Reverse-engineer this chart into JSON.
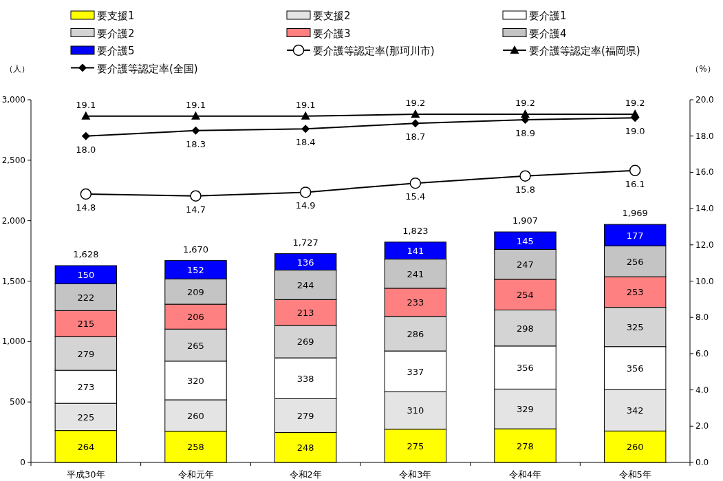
{
  "chart_data": {
    "type": "bar",
    "stacked": true,
    "ylabel": "（人）",
    "y2label": "（%）",
    "categories": [
      "平成30年",
      "令和元年",
      "令和2年",
      "令和3年",
      "令和4年",
      "令和5年"
    ],
    "ylim": [
      0,
      3000
    ],
    "yticks": [
      {
        "value": 0,
        "label": "0"
      },
      {
        "value": 500,
        "label": "500"
      },
      {
        "value": 1000,
        "label": "1,000"
      },
      {
        "value": 1500,
        "label": "1,500"
      },
      {
        "value": 2000,
        "label": "2,000"
      },
      {
        "value": 2500,
        "label": "2,500"
      },
      {
        "value": 3000,
        "label": "3,000"
      }
    ],
    "y2lim": [
      0,
      20
    ],
    "y2ticks": [
      {
        "value": 0,
        "label": "0.0"
      },
      {
        "value": 2,
        "label": "2.0"
      },
      {
        "value": 4,
        "label": "4.0"
      },
      {
        "value": 6,
        "label": "6.0"
      },
      {
        "value": 8,
        "label": "8.0"
      },
      {
        "value": 10,
        "label": "10.0"
      },
      {
        "value": 12,
        "label": "12.0"
      },
      {
        "value": 14,
        "label": "14.0"
      },
      {
        "value": 16,
        "label": "16.0"
      },
      {
        "value": 18,
        "label": "18.0"
      },
      {
        "value": 20,
        "label": "20.0"
      }
    ],
    "legend": "top",
    "data_labels": true,
    "totals": [
      "1,628",
      "1,670",
      "1,727",
      "1,823",
      "1,907",
      "1,969"
    ],
    "series": [
      {
        "name": "要支援1",
        "color": "#ffff00",
        "values": [
          264,
          258,
          248,
          275,
          278,
          260
        ]
      },
      {
        "name": "要支援2",
        "color": "#e4e4e4",
        "values": [
          225,
          260,
          279,
          310,
          329,
          342
        ]
      },
      {
        "name": "要介護1",
        "color": "#ffffff",
        "values": [
          273,
          320,
          338,
          337,
          356,
          356
        ]
      },
      {
        "name": "要介護2",
        "color": "#d4d4d4",
        "values": [
          279,
          265,
          269,
          286,
          298,
          325
        ]
      },
      {
        "name": "要介護3",
        "color": "#ff8080",
        "values": [
          215,
          206,
          213,
          233,
          254,
          253
        ]
      },
      {
        "name": "要介護4",
        "color": "#c4c4c4",
        "values": [
          222,
          209,
          244,
          241,
          247,
          256
        ]
      },
      {
        "name": "要介護5",
        "color": "#0000ff",
        "values": [
          150,
          152,
          136,
          141,
          145,
          177
        ]
      },
      {
        "name": "要介護等認定率(那珂川市)",
        "type": "line",
        "axis": "y2",
        "marker": "circle",
        "color": "#000000",
        "values": [
          14.8,
          14.7,
          14.9,
          15.4,
          15.8,
          16.1
        ],
        "value_labels": [
          "14.8",
          "14.7",
          "14.9",
          "15.4",
          "15.8",
          "16.1"
        ]
      },
      {
        "name": "要介護等認定率(福岡県)",
        "type": "line",
        "axis": "y2",
        "marker": "triangle",
        "color": "#000000",
        "values": [
          19.1,
          19.1,
          19.1,
          19.2,
          19.2,
          19.2
        ],
        "value_labels": [
          "19.1",
          "19.1",
          "19.1",
          "19.2",
          "19.2",
          "19.2"
        ]
      },
      {
        "name": "要介護等認定率(全国)",
        "type": "line",
        "axis": "y2",
        "marker": "diamond",
        "color": "#000000",
        "values": [
          18.0,
          18.3,
          18.4,
          18.7,
          18.9,
          19.0
        ],
        "value_labels": [
          "18.0",
          "18.3",
          "18.4",
          "18.7",
          "18.9",
          "19.0"
        ]
      }
    ]
  }
}
